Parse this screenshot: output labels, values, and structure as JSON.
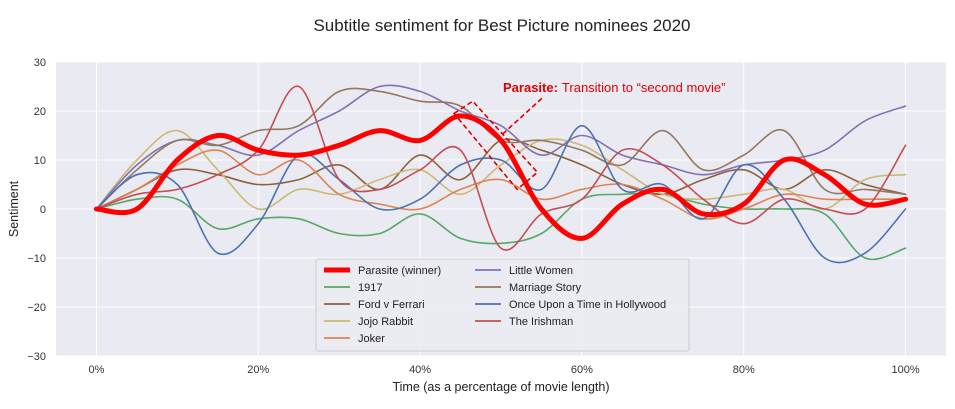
{
  "chart_data": {
    "type": "line",
    "title": "Subtitle sentiment for Best Picture nominees 2020",
    "xlabel": "Time (as a percentage of movie length)",
    "ylabel": "Sentiment",
    "xlim": [
      -5,
      105
    ],
    "ylim": [
      -30,
      30
    ],
    "xticks": [
      0,
      20,
      40,
      60,
      80,
      100
    ],
    "xtick_labels": [
      "0%",
      "20%",
      "40%",
      "60%",
      "80%",
      "100%"
    ],
    "yticks": [
      -30,
      -20,
      -10,
      0,
      10,
      20,
      30
    ],
    "ytick_labels": [
      "−30",
      "−20",
      "−10",
      "0",
      "10",
      "20",
      "30"
    ],
    "grid": true,
    "legend_position": "bottom-center",
    "colors": {
      "plot_background": "#eaeaf2",
      "grid": "#ffffff"
    },
    "x": [
      0,
      5,
      10,
      15,
      20,
      25,
      30,
      35,
      40,
      45,
      50,
      55,
      60,
      65,
      70,
      75,
      80,
      85,
      90,
      95,
      100
    ],
    "series": [
      {
        "name": "Parasite (winner)",
        "color": "#ff0000",
        "width": 5,
        "values": [
          0,
          0,
          10,
          15,
          12,
          11,
          13,
          16,
          14,
          19,
          14,
          0,
          -6,
          1,
          4,
          -1,
          1,
          10,
          7,
          1,
          2
        ]
      },
      {
        "name": "1917",
        "color": "#55a868",
        "width": 1.6,
        "values": [
          0,
          2,
          2,
          -4,
          -2,
          -2,
          -5,
          -5,
          -1,
          -6,
          -7,
          -5,
          2,
          3,
          3,
          1,
          0,
          0,
          -1,
          -10,
          -8
        ]
      },
      {
        "name": "Ford v Ferrari",
        "color": "#8c613c",
        "width": 1.6,
        "values": [
          0,
          4,
          8,
          7,
          5,
          6,
          9,
          4,
          11,
          6,
          14,
          12,
          9,
          5,
          3,
          6,
          8,
          4,
          8,
          5,
          3
        ]
      },
      {
        "name": "Jojo Rabbit",
        "color": "#ccb974",
        "width": 1.6,
        "values": [
          0,
          10,
          16,
          8,
          0,
          4,
          3,
          6,
          8,
          3,
          9,
          14,
          13,
          8,
          3,
          2,
          3,
          4,
          0,
          6,
          7
        ]
      },
      {
        "name": "Joker",
        "color": "#dd8452",
        "width": 1.6,
        "values": [
          0,
          4,
          9,
          12,
          7,
          10,
          3,
          1,
          0,
          4,
          6,
          2,
          4,
          5,
          2,
          -2,
          0,
          3,
          2,
          2,
          2
        ]
      },
      {
        "name": "Little Women",
        "color": "#8172b3",
        "width": 1.6,
        "values": [
          0,
          9,
          14,
          13,
          11,
          16,
          20,
          25,
          24,
          20,
          17,
          11,
          15,
          11,
          9,
          7,
          9,
          10,
          12,
          18,
          21
        ]
      },
      {
        "name": "Marriage Story",
        "color": "#937860",
        "width": 1.6,
        "values": [
          0,
          8,
          14,
          13,
          16,
          17,
          24,
          24,
          22,
          21,
          14,
          14,
          12,
          9,
          16,
          8,
          11,
          16,
          4,
          4,
          3
        ]
      },
      {
        "name": "Once Upon a Time in Hollywood",
        "color": "#4c72b0",
        "width": 1.6,
        "values": [
          0,
          7,
          5,
          -9,
          -3,
          11,
          6,
          0,
          2,
          9,
          10,
          4,
          17,
          4,
          5,
          -2,
          9,
          2,
          -10,
          -9,
          0
        ]
      },
      {
        "name": "The Irishman",
        "color": "#c44e52",
        "width": 1.6,
        "values": [
          0,
          3,
          4,
          7,
          12,
          25,
          6,
          4,
          8,
          12,
          -8,
          -1,
          2,
          12,
          9,
          2,
          -3,
          2,
          0,
          0,
          13
        ]
      }
    ],
    "annotation": {
      "bold": "Parasite:",
      "text": "Transition to “second movie”",
      "color": "#e00000"
    }
  }
}
